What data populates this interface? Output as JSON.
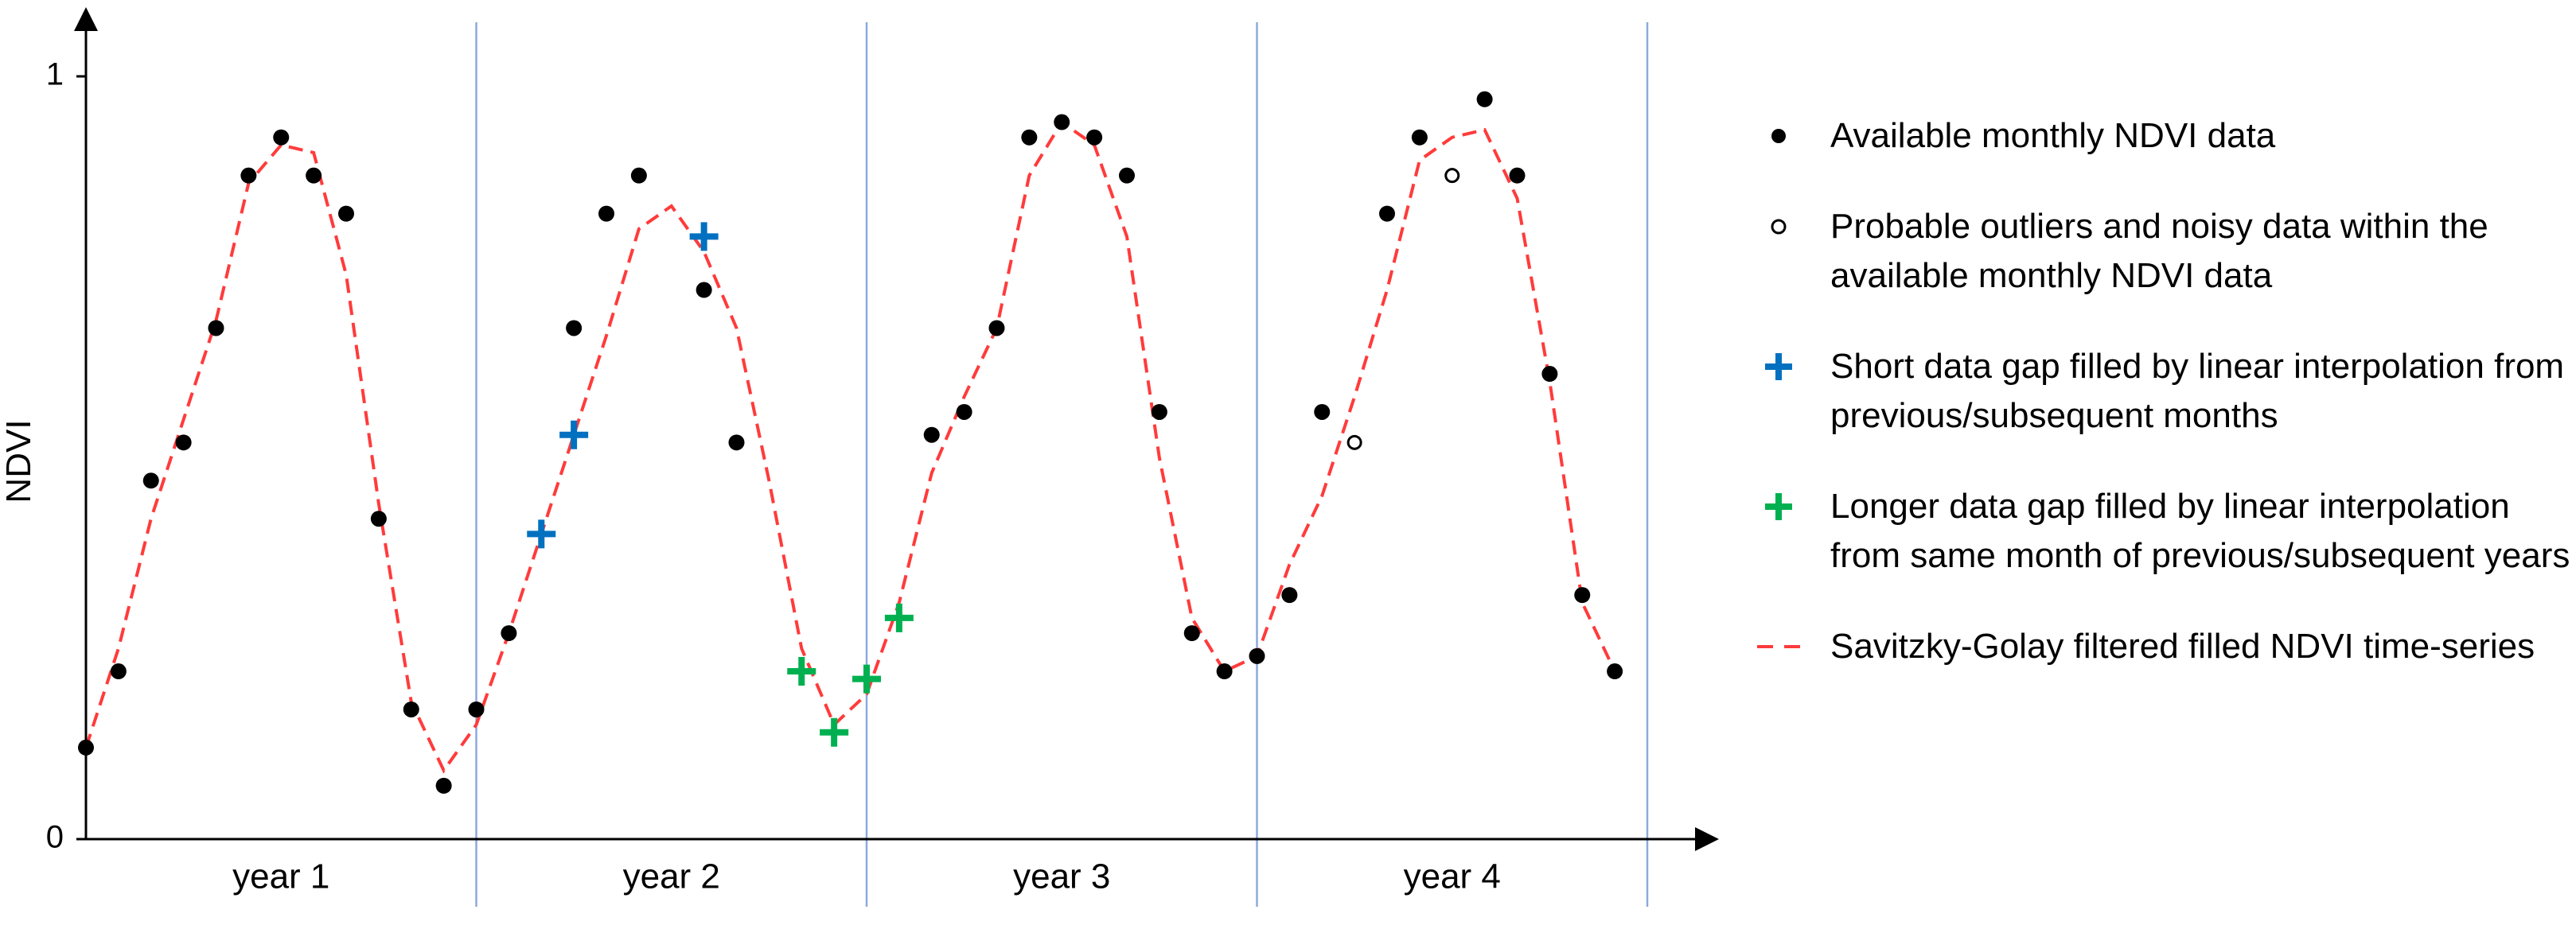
{
  "chart_data": {
    "type": "scatter",
    "xlabel": "",
    "ylabel": "NDVI",
    "ylim": [
      0,
      1
    ],
    "xlim": [
      0,
      48
    ],
    "yticks": [
      "0",
      "1"
    ],
    "periods": [
      "year 1",
      "year 2",
      "year 3",
      "year 4"
    ],
    "colors": {
      "available": "#000000",
      "outlier": "#000000",
      "short_gap": "#0070C0",
      "long_gap": "#00B050",
      "filtered": "#FF3B3B",
      "year_divider": "#8EA9DB"
    },
    "series": [
      {
        "name": "Available monthly NDVI data",
        "marker": "filled-circle",
        "points": [
          [
            0,
            0.12
          ],
          [
            1,
            0.22
          ],
          [
            2,
            0.47
          ],
          [
            3,
            0.52
          ],
          [
            4,
            0.67
          ],
          [
            5,
            0.87
          ],
          [
            6,
            0.92
          ],
          [
            7,
            0.87
          ],
          [
            8,
            0.82
          ],
          [
            9,
            0.42
          ],
          [
            10,
            0.17
          ],
          [
            11,
            0.07
          ],
          [
            12,
            0.17
          ],
          [
            13,
            0.27
          ],
          [
            15,
            0.67
          ],
          [
            16,
            0.82
          ],
          [
            17,
            0.87
          ],
          [
            19,
            0.72
          ],
          [
            20,
            0.52
          ],
          [
            26,
            0.53
          ],
          [
            27,
            0.56
          ],
          [
            28,
            0.67
          ],
          [
            29,
            0.92
          ],
          [
            30,
            0.94
          ],
          [
            31,
            0.92
          ],
          [
            32,
            0.87
          ],
          [
            33,
            0.56
          ],
          [
            34,
            0.27
          ],
          [
            35,
            0.22
          ],
          [
            36,
            0.24
          ],
          [
            37,
            0.32
          ],
          [
            38,
            0.56
          ],
          [
            40,
            0.82
          ],
          [
            41,
            0.92
          ],
          [
            43,
            0.97
          ],
          [
            44,
            0.87
          ],
          [
            45,
            0.61
          ],
          [
            46,
            0.32
          ],
          [
            47,
            0.22
          ]
        ]
      },
      {
        "name": "Probable outliers and noisy data within the available monthly NDVI data",
        "marker": "open-circle",
        "points": [
          [
            39,
            0.52
          ],
          [
            42,
            0.87
          ]
        ]
      },
      {
        "name": "Short data gap filled by linear interpolation from previous/subsequent months",
        "marker": "plus-blue",
        "points": [
          [
            14,
            0.4
          ],
          [
            15,
            0.53
          ],
          [
            19,
            0.79
          ]
        ]
      },
      {
        "name": "Longer data gap filled by linear interpolation from same month of previous/subsequent years",
        "marker": "plus-green",
        "points": [
          [
            22,
            0.22
          ],
          [
            23,
            0.14
          ],
          [
            24,
            0.21
          ],
          [
            25,
            0.29
          ]
        ]
      },
      {
        "name": "Savitzky-Golay filtered filled NDVI time-series",
        "marker": "dashed-line",
        "points": [
          [
            0,
            0.12
          ],
          [
            1,
            0.25
          ],
          [
            2,
            0.42
          ],
          [
            3,
            0.55
          ],
          [
            4,
            0.68
          ],
          [
            5,
            0.86
          ],
          [
            6,
            0.91
          ],
          [
            7,
            0.9
          ],
          [
            8,
            0.74
          ],
          [
            9,
            0.44
          ],
          [
            10,
            0.18
          ],
          [
            11,
            0.09
          ],
          [
            12,
            0.15
          ],
          [
            13,
            0.27
          ],
          [
            14,
            0.4
          ],
          [
            15,
            0.53
          ],
          [
            16,
            0.66
          ],
          [
            17,
            0.8
          ],
          [
            18,
            0.83
          ],
          [
            19,
            0.77
          ],
          [
            20,
            0.67
          ],
          [
            21,
            0.47
          ],
          [
            22,
            0.25
          ],
          [
            23,
            0.15
          ],
          [
            24,
            0.19
          ],
          [
            25,
            0.31
          ],
          [
            26,
            0.48
          ],
          [
            27,
            0.58
          ],
          [
            28,
            0.67
          ],
          [
            29,
            0.87
          ],
          [
            30,
            0.94
          ],
          [
            31,
            0.91
          ],
          [
            32,
            0.79
          ],
          [
            33,
            0.5
          ],
          [
            34,
            0.29
          ],
          [
            35,
            0.22
          ],
          [
            36,
            0.24
          ],
          [
            37,
            0.36
          ],
          [
            38,
            0.45
          ],
          [
            39,
            0.58
          ],
          [
            40,
            0.72
          ],
          [
            41,
            0.89
          ],
          [
            42,
            0.92
          ],
          [
            43,
            0.93
          ],
          [
            44,
            0.84
          ],
          [
            45,
            0.6
          ],
          [
            46,
            0.31
          ],
          [
            47,
            0.22
          ]
        ]
      }
    ],
    "legend": {
      "placement": "right",
      "items": [
        {
          "marker": "filled-circle",
          "label": "Available monthly NDVI data"
        },
        {
          "marker": "open-circle",
          "label": "Probable outliers and noisy data within the available monthly NDVI data"
        },
        {
          "marker": "plus-blue",
          "label": "Short data gap filled by linear interpolation from previous/subsequent months"
        },
        {
          "marker": "plus-green",
          "label": "Longer data gap filled by linear interpolation from same month of previous/subsequent years"
        },
        {
          "marker": "dashed-line",
          "label": "Savitzky-Golay filtered filled NDVI time-series"
        }
      ]
    }
  }
}
